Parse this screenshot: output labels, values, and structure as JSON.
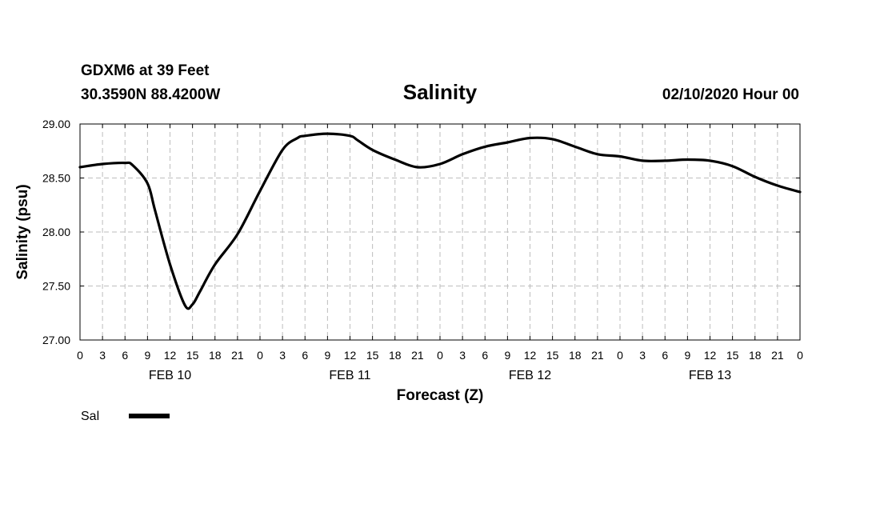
{
  "header": {
    "station": "GDXM6 at 39 Feet",
    "location": "30.3590N 88.4200W",
    "title": "Salinity",
    "run": "02/10/2020 Hour 00"
  },
  "legend": {
    "label": "Sal"
  },
  "chart_data": {
    "type": "line",
    "title": "Salinity",
    "xlabel": "Forecast (Z)",
    "ylabel": "Salinity (psu)",
    "xlim": [
      0,
      96
    ],
    "ylim": [
      27.0,
      29.0
    ],
    "y_ticks": [
      "27.00",
      "27.50",
      "28.00",
      "28.50",
      "29.00"
    ],
    "x_tick_labels": [
      "0",
      "3",
      "6",
      "9",
      "12",
      "15",
      "18",
      "21",
      "0",
      "3",
      "6",
      "9",
      "12",
      "15",
      "18",
      "21",
      "0",
      "3",
      "6",
      "9",
      "12",
      "15",
      "18",
      "21",
      "0",
      "3",
      "6",
      "9",
      "12",
      "15",
      "18",
      "21",
      "0"
    ],
    "date_labels": [
      {
        "label": "FEB 10",
        "hour": 12
      },
      {
        "label": "FEB 11",
        "hour": 36
      },
      {
        "label": "FEB 12",
        "hour": 60
      },
      {
        "label": "FEB 13",
        "hour": 84
      }
    ],
    "grid": true,
    "series": [
      {
        "name": "Sal",
        "color": "#000000",
        "x": [
          0,
          3,
          6,
          7,
          9,
          10,
          12,
          14,
          15,
          16,
          18,
          21,
          24,
          27,
          29,
          30,
          33,
          36,
          37,
          39,
          42,
          45,
          48,
          51,
          54,
          57,
          60,
          63,
          66,
          69,
          72,
          75,
          78,
          81,
          84,
          87,
          90,
          93,
          96
        ],
        "values": [
          28.6,
          28.63,
          28.64,
          28.62,
          28.45,
          28.2,
          27.7,
          27.32,
          27.33,
          27.45,
          27.7,
          27.98,
          28.38,
          28.76,
          28.87,
          28.89,
          28.91,
          28.89,
          28.85,
          28.76,
          28.67,
          28.6,
          28.63,
          28.72,
          28.79,
          28.83,
          28.87,
          28.86,
          28.79,
          28.72,
          28.7,
          28.66,
          28.66,
          28.67,
          28.66,
          28.61,
          28.51,
          28.43,
          28.37
        ]
      }
    ]
  }
}
